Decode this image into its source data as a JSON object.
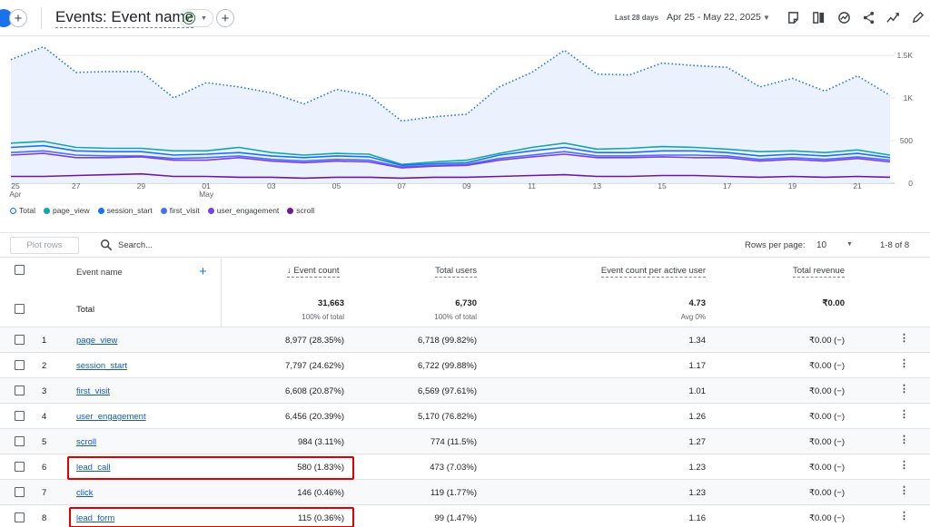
{
  "header": {
    "title": "Events: Event name",
    "date_label": "Last 28 days",
    "date_range": "Apr 25 - May 22, 2025",
    "icons": [
      "plus-icon",
      "check-circle-icon",
      "chevron-down-icon",
      "add-comparison-icon",
      "annotation-icon",
      "compare-icon",
      "insights-icon",
      "share-icon",
      "trend-icon",
      "edit-icon"
    ]
  },
  "chart_data": {
    "type": "line",
    "x": [
      "Apr 25",
      "Apr 26",
      "Apr 27",
      "Apr 28",
      "Apr 29",
      "Apr 30",
      "May 01",
      "May 02",
      "May 03",
      "May 04",
      "May 05",
      "May 06",
      "May 07",
      "May 08",
      "May 09",
      "May 10",
      "May 11",
      "May 12",
      "May 13",
      "May 14",
      "May 15",
      "May 16",
      "May 17",
      "May 18",
      "May 19",
      "May 20",
      "May 21",
      "May 22"
    ],
    "x_tick_labels": [
      "25",
      "27",
      "29",
      "01",
      "03",
      "05",
      "07",
      "09",
      "11",
      "13",
      "15",
      "17",
      "19",
      "21"
    ],
    "x_month_labels": [
      "Apr",
      "May"
    ],
    "y_ticks": [
      "0",
      "500",
      "1K",
      "1.5K"
    ],
    "ylim": [
      0,
      1500
    ],
    "series": [
      {
        "name": "Total",
        "color": "#1a73e8",
        "style": "dotted-area",
        "values": [
          1450,
          1600,
          1300,
          1310,
          1310,
          1000,
          1180,
          1130,
          1060,
          930,
          1100,
          1030,
          730,
          780,
          810,
          1130,
          1300,
          1560,
          1280,
          1270,
          1410,
          1380,
          1360,
          1130,
          1230,
          1080,
          1260,
          1030
        ]
      },
      {
        "name": "page_view",
        "color": "#12a4af",
        "values": [
          470,
          490,
          420,
          410,
          410,
          380,
          380,
          420,
          360,
          330,
          350,
          340,
          220,
          250,
          270,
          350,
          420,
          470,
          400,
          410,
          430,
          420,
          400,
          370,
          380,
          360,
          390,
          330
        ]
      },
      {
        "name": "session_start",
        "color": "#1a73e8",
        "values": [
          420,
          440,
          380,
          370,
          370,
          330,
          340,
          360,
          320,
          300,
          320,
          310,
          210,
          230,
          240,
          330,
          380,
          420,
          360,
          360,
          380,
          380,
          360,
          320,
          340,
          320,
          350,
          300
        ]
      },
      {
        "name": "first_visit",
        "color": "#4c6ef5",
        "values": [
          360,
          380,
          330,
          320,
          320,
          290,
          300,
          320,
          280,
          260,
          280,
          270,
          190,
          210,
          220,
          290,
          330,
          370,
          320,
          320,
          330,
          330,
          320,
          280,
          300,
          280,
          310,
          270
        ]
      },
      {
        "name": "user_engagement",
        "color": "#7b3fe4",
        "values": [
          330,
          350,
          300,
          300,
          310,
          270,
          270,
          300,
          260,
          240,
          260,
          250,
          180,
          200,
          210,
          270,
          310,
          340,
          300,
          300,
          310,
          300,
          300,
          260,
          280,
          260,
          290,
          250
        ]
      },
      {
        "name": "scroll",
        "color": "#6a1b9a",
        "values": [
          80,
          80,
          90,
          100,
          110,
          80,
          80,
          70,
          70,
          60,
          70,
          70,
          60,
          70,
          70,
          80,
          90,
          100,
          80,
          80,
          90,
          90,
          80,
          70,
          80,
          70,
          80,
          70
        ]
      }
    ]
  },
  "toolbar": {
    "plot_rows": "Plot rows",
    "search_placeholder": "Search...",
    "rows_per_page_label": "Rows per page:",
    "rows_per_page": "10",
    "pager": "1-8 of 8"
  },
  "table": {
    "headers": {
      "event_name": "Event name",
      "event_count": "Event count",
      "total_users": "Total users",
      "per_user": "Event count per active user",
      "revenue": "Total revenue"
    },
    "totals": {
      "label": "Total",
      "event_count": "31,663",
      "event_count_sub": "100% of total",
      "total_users": "6,730",
      "total_users_sub": "100% of total",
      "per_user": "4.73",
      "per_user_sub": "Avg 0%",
      "revenue": "₹0.00"
    },
    "rows": [
      {
        "idx": "1",
        "name": "page_view",
        "count": "8,977 (28.35%)",
        "users": "6,718 (99.82%)",
        "per_user": "1.34",
        "revenue": "₹0.00 (−)"
      },
      {
        "idx": "2",
        "name": "session_start",
        "count": "7,797 (24.62%)",
        "users": "6,722 (99.88%)",
        "per_user": "1.17",
        "revenue": "₹0.00 (−)"
      },
      {
        "idx": "3",
        "name": "first_visit",
        "count": "6,608 (20.87%)",
        "users": "6,569 (97.61%)",
        "per_user": "1.01",
        "revenue": "₹0.00 (−)"
      },
      {
        "idx": "4",
        "name": "user_engagement",
        "count": "6,456 (20.39%)",
        "users": "5,170 (76.82%)",
        "per_user": "1.26",
        "revenue": "₹0.00 (−)"
      },
      {
        "idx": "5",
        "name": "scroll",
        "count": "984 (3.11%)",
        "users": "774 (11.5%)",
        "per_user": "1.27",
        "revenue": "₹0.00 (−)"
      },
      {
        "idx": "6",
        "name": "lead_call",
        "count": "580 (1.83%)",
        "users": "473 (7.03%)",
        "per_user": "1.23",
        "revenue": "₹0.00 (−)"
      },
      {
        "idx": "7",
        "name": "click",
        "count": "146 (0.46%)",
        "users": "119 (1.77%)",
        "per_user": "1.23",
        "revenue": "₹0.00 (−)"
      },
      {
        "idx": "8",
        "name": "lead_form",
        "count": "115 (0.36%)",
        "users": "99 (1.47%)",
        "per_user": "1.16",
        "revenue": "₹0.00 (−)"
      }
    ]
  }
}
